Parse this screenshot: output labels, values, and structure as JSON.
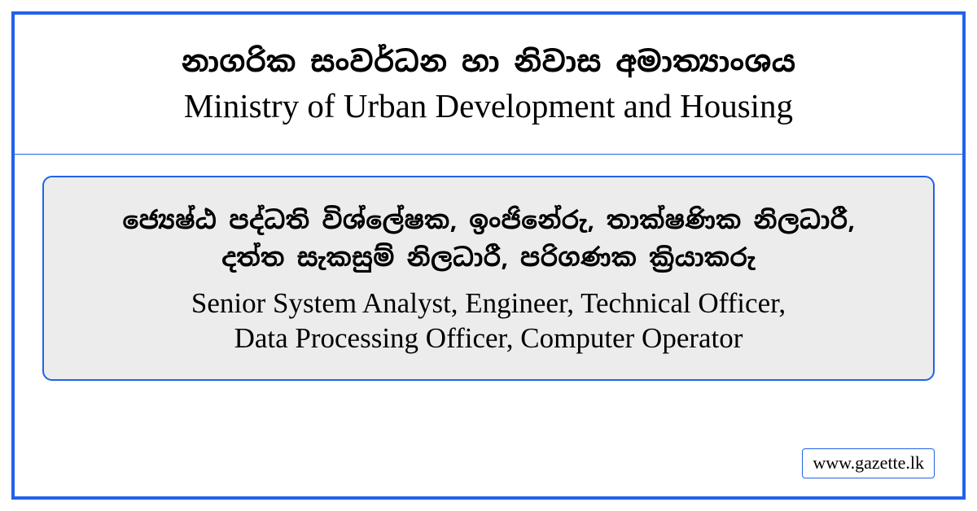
{
  "colors": {
    "border_blue": "#2163e8",
    "page_bg": "#ffffff",
    "box_bg": "#ececec",
    "text": "#000000"
  },
  "header": {
    "title_sinhala": "නාගරික සංවර්ධන හා නිවාස අමාත්‍යාංශය",
    "title_english": "Ministry of Urban Development and Housing"
  },
  "positions": {
    "sinhala": "ජ්‍යෙෂ්ඨ පද්ධති විශ්ලේෂක, ඉංජිනේරු, තාක්ෂණික නිලධාරී,\nදත්ත සැකසුම් නිලධාරී, පරිගණක ක්‍රියාකරු",
    "english": "Senior System Analyst, Engineer, Technical Officer,\nData Processing Officer, Computer Operator"
  },
  "source": {
    "label": "www.gazette.lk"
  }
}
